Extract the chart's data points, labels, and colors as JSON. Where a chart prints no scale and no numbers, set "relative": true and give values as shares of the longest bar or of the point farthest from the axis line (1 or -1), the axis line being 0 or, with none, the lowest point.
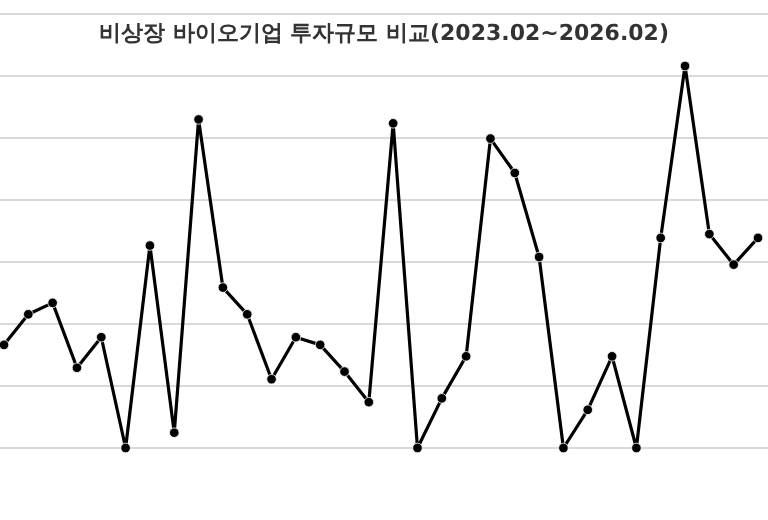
{
  "chart_data": {
    "type": "line",
    "title": "비상장 바이오기업 투자규모 비교(2023.02~2026.02)",
    "relative": true,
    "grid": "y",
    "marker": "circle",
    "line_style": "solid",
    "categories": [
      null,
      null,
      null,
      null,
      null,
      null,
      null,
      null,
      null,
      null,
      null,
      null,
      null,
      null,
      null,
      null,
      null,
      null,
      null,
      null,
      null,
      null,
      null,
      null,
      null,
      null,
      null,
      null,
      null,
      null,
      null,
      null
    ],
    "series": [
      {
        "color": "#000000",
        "values": [
          0.27,
          0.35,
          0.38,
          0.21,
          0.29,
          0,
          0.53,
          0.04,
          0.86,
          0.42,
          0.35,
          0.18,
          0.29,
          0.27,
          0.2,
          0.12,
          0.85,
          0,
          0.13,
          0.24,
          0.81,
          0.72,
          0.5,
          0,
          0.1,
          0.24,
          0,
          0.55,
          1,
          0.56,
          0.48,
          0.55
        ]
      }
    ]
  }
}
